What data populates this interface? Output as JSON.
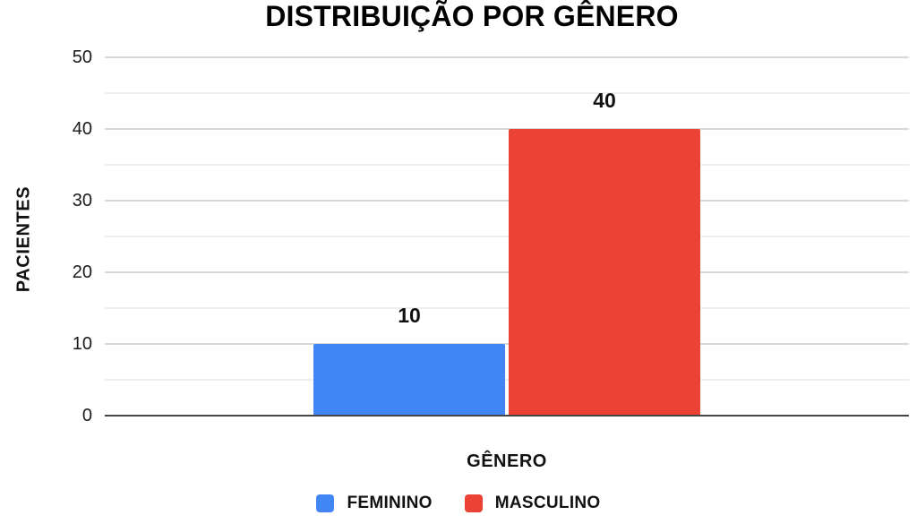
{
  "chart_data": {
    "type": "bar",
    "title": "DISTRIBUIÇÃO POR GÊNERO",
    "xlabel": "GÊNERO",
    "ylabel": "PACIENTES",
    "categories": [
      ""
    ],
    "series": [
      {
        "name": "FEMININO",
        "values": [
          10
        ],
        "color": "#4285F4"
      },
      {
        "name": "MASCULINO",
        "values": [
          40
        ],
        "color": "#EA4335"
      }
    ],
    "ylim": [
      0,
      50
    ],
    "y_major_ticks": [
      0,
      10,
      20,
      30,
      40,
      50
    ],
    "y_minor_step": 5,
    "grid": true,
    "legend_position": "bottom",
    "data_labels_shown": true
  },
  "colors": {
    "feminino_bar": "#4285F4",
    "masculino_bar": "#EA4335",
    "grid_major": "#d8d8d8",
    "grid_minor": "#efefef",
    "axis_line": "#444444",
    "text": "#111111"
  }
}
